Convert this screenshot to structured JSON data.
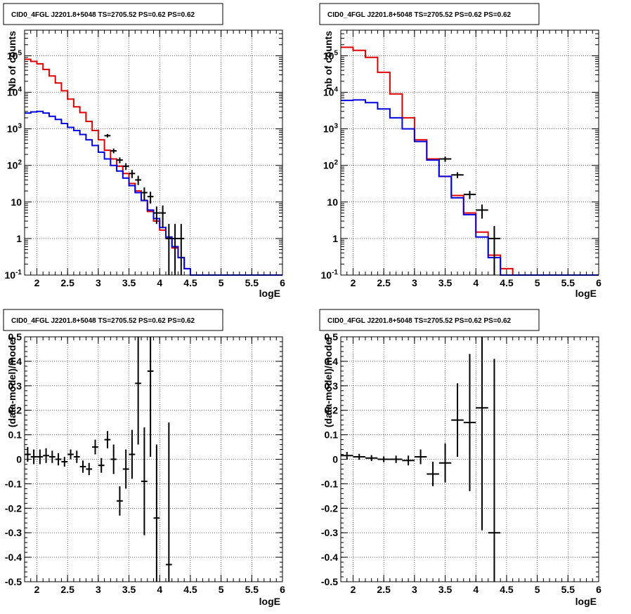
{
  "chart_data": [
    {
      "type": "line",
      "title": "CID0_4FGL J2201.8+5048 TS=2705.52 PS=0.62 PS=0.62",
      "xlabel": "logE",
      "ylabel": "Nb of counts",
      "xlim": [
        1.8,
        6.0
      ],
      "ylim": [
        0.1,
        500000
      ],
      "yscale": "log",
      "grid": true,
      "x_ticks": [
        "2",
        "2.5",
        "3",
        "3.5",
        "4",
        "4.5",
        "5",
        "5.5",
        "6"
      ],
      "y_ticks": [
        "10^-1",
        "1",
        "10",
        "10^2",
        "10^3",
        "10^4",
        "10^5"
      ],
      "bin_edges": [
        1.8,
        1.9,
        2.0,
        2.1,
        2.2,
        2.3,
        2.4,
        2.5,
        2.6,
        2.7,
        2.8,
        2.9,
        3.0,
        3.1,
        3.2,
        3.3,
        3.4,
        3.5,
        3.6,
        3.7,
        3.8,
        3.9,
        4.0,
        4.1,
        4.2,
        4.3,
        4.4,
        4.5,
        4.6,
        4.7,
        4.8,
        4.9,
        5.0,
        5.1,
        5.2,
        5.3,
        5.4,
        5.5,
        5.6,
        5.7,
        5.8,
        5.9,
        6.0
      ],
      "series": [
        {
          "color": "#e00000",
          "style": "step",
          "values": [
            80000,
            70000,
            60000,
            42000,
            28000,
            18000,
            11000,
            6500,
            4000,
            2800,
            1600,
            900,
            500,
            260,
            150,
            95,
            60,
            32,
            20,
            11,
            5.5,
            3,
            1.7,
            1,
            0.55,
            0.3,
            0.15,
            0.1,
            0.1,
            0.1,
            0.1,
            0.1,
            0.1,
            0.1,
            0.1,
            0.1,
            0.1,
            0.1,
            0.1,
            0.1,
            0.1,
            0.1
          ]
        },
        {
          "color": "#0000e0",
          "style": "step",
          "values": [
            2700,
            2900,
            3000,
            2700,
            2200,
            1800,
            1400,
            1100,
            900,
            700,
            500,
            350,
            230,
            150,
            100,
            70,
            45,
            28,
            18,
            11,
            6,
            3.5,
            2,
            1.1,
            0.6,
            0.3,
            0.15,
            0.1,
            0.1,
            0.1,
            0.1,
            0.1,
            0.1,
            0.1,
            0.1,
            0.1,
            0.1,
            0.1,
            0.1,
            0.1,
            0.1,
            0.1
          ]
        },
        {
          "color": "#000000",
          "style": "errorbar",
          "points": [
            {
              "x": 3.15,
              "y": 650,
              "lo": 580,
              "hi": 720
            },
            {
              "x": 3.25,
              "y": 250,
              "lo": 215,
              "hi": 290
            },
            {
              "x": 3.35,
              "y": 140,
              "lo": 115,
              "hi": 165
            },
            {
              "x": 3.45,
              "y": 95,
              "lo": 75,
              "hi": 115
            },
            {
              "x": 3.55,
              "y": 60,
              "lo": 45,
              "hi": 75
            },
            {
              "x": 3.65,
              "y": 40,
              "lo": 29,
              "hi": 52
            },
            {
              "x": 3.75,
              "y": 18,
              "lo": 11,
              "hi": 25
            },
            {
              "x": 3.85,
              "y": 14,
              "lo": 9,
              "hi": 19
            },
            {
              "x": 3.95,
              "y": 5,
              "lo": 2.5,
              "hi": 7.5
            },
            {
              "x": 4.05,
              "y": 5,
              "lo": 2,
              "hi": 8
            },
            {
              "x": 4.15,
              "y": 1,
              "lo": 0.1,
              "hi": 2.5
            },
            {
              "x": 4.25,
              "y": 1,
              "lo": 0.1,
              "hi": 2.5
            },
            {
              "x": 4.35,
              "y": 1,
              "lo": 0.1,
              "hi": 2.5
            }
          ]
        }
      ]
    },
    {
      "type": "line",
      "title": "CID0_4FGL J2201.8+5048 TS=2705.52 PS=0.62 PS=0.62",
      "xlabel": "logE",
      "ylabel": "nb of counts",
      "xlim": [
        1.8,
        6.0
      ],
      "ylim": [
        0.1,
        500000
      ],
      "yscale": "log",
      "grid": true,
      "x_ticks": [
        "2",
        "2.5",
        "3",
        "3.5",
        "4",
        "4.5",
        "5",
        "5.5",
        "6"
      ],
      "y_ticks": [
        "10^-1",
        "1",
        "10",
        "10^2",
        "10^3",
        "10^4",
        "10^5"
      ],
      "bin_edges": [
        1.8,
        2.0,
        2.2,
        2.4,
        2.6,
        2.8,
        3.0,
        3.2,
        3.4,
        3.6,
        3.8,
        4.0,
        4.2,
        4.4,
        4.6,
        4.8,
        5.0,
        5.2,
        5.4,
        5.6,
        5.8,
        6.0
      ],
      "series": [
        {
          "color": "#e00000",
          "style": "step",
          "values": [
            170000,
            140000,
            90000,
            35000,
            9000,
            2000,
            500,
            150,
            50,
            15,
            5,
            1.5,
            0.35,
            0.15,
            0.1,
            0.1,
            0.1,
            0.1,
            0.1,
            0.1,
            0.1
          ]
        },
        {
          "color": "#0000e0",
          "style": "step",
          "values": [
            6000,
            6200,
            5200,
            3500,
            2000,
            1000,
            450,
            140,
            50,
            13,
            4.5,
            1.1,
            0.3,
            0.1,
            0.1,
            0.1,
            0.1,
            0.1,
            0.1,
            0.1,
            0.1
          ]
        },
        {
          "color": "#000000",
          "style": "errorbar",
          "points": [
            {
              "x": 3.5,
              "y": 150,
              "lo": 125,
              "hi": 175
            },
            {
              "x": 3.7,
              "y": 55,
              "lo": 45,
              "hi": 65
            },
            {
              "x": 3.9,
              "y": 16,
              "lo": 12,
              "hi": 20
            },
            {
              "x": 4.1,
              "y": 6,
              "lo": 3.5,
              "hi": 8.5
            },
            {
              "x": 4.3,
              "y": 1,
              "lo": 0.1,
              "hi": 2.2
            }
          ]
        }
      ]
    },
    {
      "type": "scatter",
      "title": "CID0_4FGL J2201.8+5048 TS=2705.52 PS=0.62 PS=0.62",
      "xlabel": "logE",
      "ylabel": "(data-model)/model",
      "xlim": [
        1.8,
        6.0
      ],
      "ylim": [
        -0.5,
        0.5
      ],
      "grid": true,
      "x_ticks": [
        "2",
        "2.5",
        "3",
        "3.5",
        "4",
        "4.5",
        "5",
        "5.5",
        "6"
      ],
      "y_ticks": [
        "-0.5",
        "-0.4",
        "-0.3",
        "-0.2",
        "-0.1",
        "0",
        "0.1",
        "0.2",
        "0.3",
        "0.4",
        "0.5"
      ],
      "points": [
        {
          "x": 1.85,
          "y": 0.02,
          "err": 0.03
        },
        {
          "x": 1.95,
          "y": 0.01,
          "err": 0.03
        },
        {
          "x": 2.05,
          "y": 0.01,
          "err": 0.03
        },
        {
          "x": 2.15,
          "y": 0.015,
          "err": 0.03
        },
        {
          "x": 2.25,
          "y": 0.01,
          "err": 0.025
        },
        {
          "x": 2.35,
          "y": 0.0,
          "err": 0.025
        },
        {
          "x": 2.45,
          "y": -0.01,
          "err": 0.02
        },
        {
          "x": 2.55,
          "y": 0.02,
          "err": 0.02
        },
        {
          "x": 2.65,
          "y": 0.01,
          "err": 0.025
        },
        {
          "x": 2.75,
          "y": -0.03,
          "err": 0.025
        },
        {
          "x": 2.85,
          "y": -0.04,
          "err": 0.025
        },
        {
          "x": 2.95,
          "y": 0.05,
          "err": 0.03
        },
        {
          "x": 3.05,
          "y": -0.025,
          "err": 0.03
        },
        {
          "x": 3.15,
          "y": 0.08,
          "err": 0.035
        },
        {
          "x": 3.25,
          "y": 0.0,
          "err": 0.06
        },
        {
          "x": 3.35,
          "y": -0.17,
          "err": 0.06
        },
        {
          "x": 3.45,
          "y": -0.04,
          "err": 0.08
        },
        {
          "x": 3.55,
          "y": 0.02,
          "err": 0.1
        },
        {
          "x": 3.65,
          "y": 0.31,
          "err": 0.25
        },
        {
          "x": 3.75,
          "y": -0.09,
          "err": 0.22
        },
        {
          "x": 3.85,
          "y": 0.36,
          "err": 0.35
        },
        {
          "x": 3.95,
          "y": -0.24,
          "err": 0.3
        },
        {
          "x": 4.15,
          "y": -0.43,
          "err": 0.58
        }
      ]
    },
    {
      "type": "scatter",
      "title": "CID0_4FGL J2201.8+5048 TS=2705.52 PS=0.62 PS=0.62",
      "xlabel": "logE",
      "ylabel": "(data-model)/model",
      "xlim": [
        1.8,
        6.0
      ],
      "ylim": [
        -0.5,
        0.5
      ],
      "grid": true,
      "x_ticks": [
        "2",
        "2.5",
        "3",
        "3.5",
        "4",
        "4.5",
        "5",
        "5.5",
        "6"
      ],
      "y_ticks": [
        "-0.5",
        "-0.4",
        "-0.3",
        "-0.2",
        "-0.1",
        "0",
        "0.1",
        "0.2",
        "0.3",
        "0.4",
        "0.5"
      ],
      "points": [
        {
          "x": 1.9,
          "y": 0.015,
          "err": 0.015
        },
        {
          "x": 2.1,
          "y": 0.01,
          "err": 0.012
        },
        {
          "x": 2.3,
          "y": 0.005,
          "err": 0.012
        },
        {
          "x": 2.5,
          "y": 0.0,
          "err": 0.012
        },
        {
          "x": 2.7,
          "y": 0.0,
          "err": 0.015
        },
        {
          "x": 2.9,
          "y": -0.005,
          "err": 0.02
        },
        {
          "x": 3.1,
          "y": 0.01,
          "err": 0.03
        },
        {
          "x": 3.3,
          "y": -0.06,
          "err": 0.05
        },
        {
          "x": 3.5,
          "y": -0.015,
          "err": 0.08
        },
        {
          "x": 3.7,
          "y": 0.16,
          "err": 0.15
        },
        {
          "x": 3.9,
          "y": 0.15,
          "err": 0.28
        },
        {
          "x": 4.1,
          "y": 0.21,
          "err": 0.5
        },
        {
          "x": 4.3,
          "y": -0.3,
          "err": 0.71
        }
      ]
    }
  ]
}
